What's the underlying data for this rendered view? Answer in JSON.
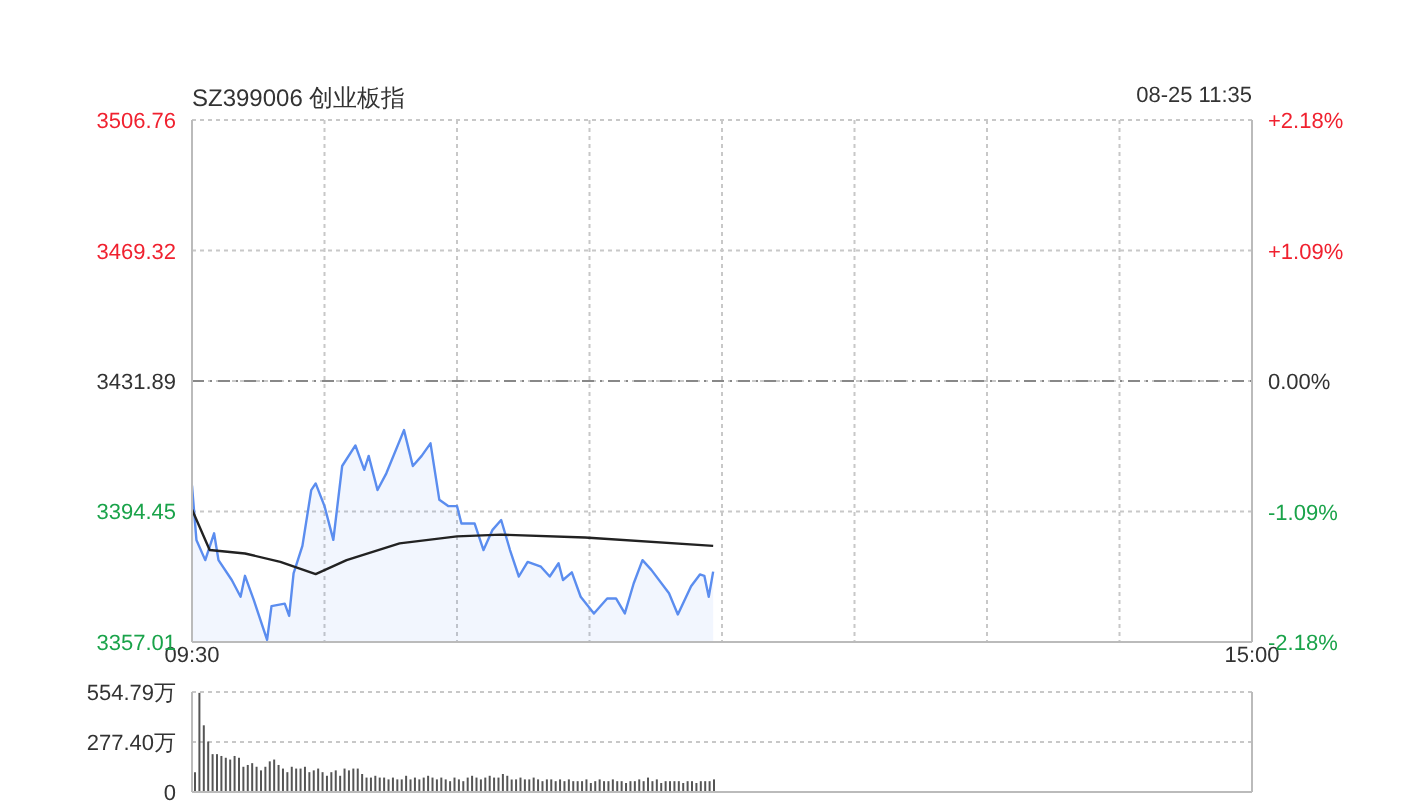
{
  "chart_data": [
    {
      "type": "line",
      "title": "SZ399006 创业板指",
      "annotations": [
        "08-25 11:35"
      ],
      "categories": [
        "09:30",
        null,
        null,
        null,
        null,
        null,
        null,
        null,
        null,
        null,
        null,
        null,
        null,
        null,
        null,
        null,
        null,
        null,
        null,
        null,
        null,
        null,
        null,
        null,
        null,
        null,
        null,
        null,
        null,
        null,
        null,
        null,
        null,
        null,
        null,
        null,
        null,
        null,
        null,
        null,
        null,
        null,
        null,
        null,
        null,
        null,
        null,
        null,
        null,
        null,
        null,
        null,
        null,
        null,
        null,
        null,
        null,
        null,
        null,
        null,
        null,
        null,
        null,
        null,
        null,
        null,
        null,
        null,
        null,
        null,
        null,
        null,
        null,
        null,
        null,
        null,
        null,
        null,
        null,
        null,
        null,
        null,
        null,
        null,
        null,
        null,
        null,
        null,
        null,
        null,
        null,
        null,
        null,
        null,
        null,
        null,
        null,
        null,
        null,
        null,
        null,
        null,
        null,
        null,
        null,
        null,
        null,
        null,
        null,
        null,
        null,
        null,
        null,
        null,
        null,
        null,
        null,
        null,
        null,
        null,
        null,
        null,
        null,
        null,
        null,
        null,
        null,
        null,
        null,
        null,
        null,
        null,
        null,
        null,
        null,
        null,
        null,
        null,
        null,
        null,
        null,
        null,
        null,
        null,
        null,
        null,
        null,
        null,
        null,
        null,
        null,
        null,
        null,
        null,
        null,
        null,
        null,
        null,
        null,
        null,
        null,
        null,
        null,
        null,
        null,
        null,
        null,
        null,
        null,
        null,
        null,
        null,
        null,
        null,
        null,
        null,
        null,
        null,
        null,
        null,
        null,
        null,
        null,
        null,
        null,
        null,
        null,
        null,
        null,
        null,
        null,
        null,
        null,
        null,
        null,
        null,
        null,
        null,
        null,
        null,
        null,
        null,
        null,
        null,
        null,
        null,
        null,
        null,
        null,
        null,
        null,
        null,
        null,
        null,
        null,
        null,
        null,
        null,
        null,
        null,
        null,
        null,
        null,
        null,
        null,
        null,
        null,
        null,
        null,
        null,
        null,
        null,
        null,
        null,
        null,
        null,
        null,
        null,
        null,
        null,
        "15:00"
      ],
      "ylim": [
        3357.01,
        3506.76
      ],
      "yticks": [
        3357.01,
        3394.45,
        3431.89,
        3469.32,
        3506.76
      ],
      "y2lim": [
        -2.18,
        2.18
      ],
      "y2ticks": [
        {
          "value": -2.18,
          "label": "-2.18%"
        },
        {
          "value": -1.09,
          "label": "-1.09%"
        },
        {
          "value": 0,
          "label": "0.00%"
        },
        {
          "value": 1.09,
          "label": "+1.09%"
        },
        {
          "value": 2.18,
          "label": "+2.18%"
        }
      ],
      "grid": true,
      "ref_lines": [
        {
          "axis": "y",
          "value": 3431.89,
          "color": "#888888",
          "line_style": "dashed"
        }
      ],
      "series": [
        {
          "type": "area",
          "color": "#5b8def",
          "values": [
            3401.9,
            3386.3,
            null,
            3380.5,
            null,
            3388.2,
            3380.5,
            null,
            null,
            3374.8,
            null,
            3370,
            3376,
            null,
            3369,
            null,
            null,
            3357.6,
            3367.3,
            null,
            null,
            3368,
            3364.5,
            3376.7,
            null,
            3384.6,
            null,
            3400.6,
            3402.5,
            null,
            3396,
            null,
            3386.3,
            null,
            3407.5,
            null,
            null,
            3413.4,
            null,
            3406.4,
            3410.4,
            null,
            3400.6,
            null,
            3405.4,
            null,
            null,
            null,
            3417.8,
            null,
            3407.5,
            null,
            3410.4,
            null,
            3414,
            null,
            3397.8,
            null,
            3396,
            null,
            3396,
            3391,
            null,
            null,
            3391,
            null,
            3383.4,
            null,
            3389.1,
            null,
            3392,
            null,
            3383.4,
            null,
            3375.8,
            null,
            3380,
            null,
            null,
            3378.6,
            null,
            3375.8,
            null,
            3379.6,
            3374.8,
            null,
            3377,
            null,
            3370,
            null,
            null,
            3365.2,
            null,
            null,
            3369.5,
            null,
            3369.5,
            null,
            3365.2,
            null,
            3373.8,
            null,
            3380.5,
            null,
            3377.7,
            null,
            null,
            null,
            3371,
            null,
            3364.9,
            null,
            null,
            3373,
            null,
            3376.4,
            3376,
            3370,
            3377.2,
            null,
            null,
            null,
            null,
            null,
            null,
            null,
            null,
            null,
            null,
            null,
            null,
            null,
            null,
            null,
            null,
            null,
            null,
            null,
            null,
            null,
            null,
            null,
            null,
            null,
            null,
            null,
            null,
            null,
            null,
            null,
            null,
            null,
            null,
            null,
            null,
            null,
            null,
            null,
            null,
            null,
            null,
            null,
            null,
            null,
            null,
            null,
            null,
            null,
            null,
            null,
            null,
            null,
            null,
            null,
            null,
            null,
            null,
            null,
            null,
            null,
            null,
            null,
            null,
            null,
            null,
            null,
            null,
            null,
            null,
            null,
            null,
            null,
            null,
            null,
            null,
            null,
            null,
            null,
            null,
            null,
            null,
            null,
            null,
            null,
            null,
            null,
            null,
            null,
            null,
            null,
            null,
            null,
            null,
            null,
            null,
            null,
            null,
            null,
            null,
            null,
            null,
            null,
            null,
            null,
            null,
            null,
            null,
            null,
            null,
            null,
            null,
            null,
            null,
            null,
            null,
            null,
            null,
            null,
            null,
            null,
            null
          ]
        },
        {
          "color": "#222222",
          "values": [
            3395,
            null,
            null,
            null,
            3383.4,
            null,
            null,
            null,
            null,
            null,
            null,
            null,
            3382.4,
            null,
            null,
            null,
            null,
            null,
            null,
            null,
            3380,
            null,
            null,
            null,
            null,
            null,
            null,
            null,
            3376.5,
            null,
            null,
            null,
            null,
            null,
            null,
            3380.5,
            null,
            null,
            null,
            null,
            null,
            null,
            null,
            null,
            null,
            null,
            null,
            3385.3,
            null,
            null,
            null,
            null,
            null,
            null,
            null,
            null,
            null,
            null,
            null,
            null,
            3387.3,
            null,
            null,
            null,
            null,
            null,
            null,
            null,
            null,
            null,
            3387.8,
            null,
            null,
            null,
            null,
            null,
            null,
            null,
            null,
            null,
            null,
            null,
            null,
            null,
            null,
            null,
            null,
            null,
            null,
            3387,
            null,
            null,
            null,
            null,
            null,
            null,
            null,
            null,
            null,
            null,
            null,
            null,
            null,
            null,
            null,
            null,
            null,
            null,
            null,
            null,
            null,
            null,
            null,
            null,
            null,
            null,
            null,
            null,
            3384.6,
            null,
            null,
            null,
            null,
            null,
            null,
            null,
            null,
            null,
            null,
            null,
            null,
            null,
            null,
            null,
            null,
            null,
            null,
            null,
            null,
            null,
            null,
            null,
            null,
            null,
            null,
            null,
            null,
            null,
            null,
            null,
            null,
            null,
            null,
            null,
            null,
            null,
            null,
            null,
            null,
            null,
            null,
            null,
            null,
            null,
            null,
            null,
            null,
            null,
            null,
            null,
            null,
            null,
            null,
            null,
            null,
            null,
            null,
            null,
            null,
            null,
            null,
            null,
            null,
            null,
            null,
            null,
            null,
            null,
            null,
            null,
            null,
            null,
            null,
            null,
            null,
            null,
            null,
            null,
            null,
            null,
            null,
            null,
            null,
            null,
            null,
            null,
            null,
            null,
            null,
            null,
            null,
            null,
            null,
            null,
            null,
            null,
            null,
            null,
            null,
            null,
            null,
            null,
            null,
            null,
            null,
            null,
            null,
            null,
            null,
            null,
            null,
            null,
            null,
            null,
            null,
            null,
            null,
            null,
            null,
            null,
            null
          ]
        }
      ]
    },
    {
      "type": "bar",
      "tick_labels": "y",
      "categories": [
        null,
        null,
        null,
        null,
        null,
        null,
        null,
        null,
        null,
        null,
        null,
        null,
        null,
        null,
        null,
        null,
        null,
        null,
        null,
        null,
        null,
        null,
        null,
        null,
        null,
        null,
        null,
        null,
        null,
        null,
        null,
        null,
        null,
        null,
        null,
        null,
        null,
        null,
        null,
        null,
        null,
        null,
        null,
        null,
        null,
        null,
        null,
        null,
        null,
        null,
        null,
        null,
        null,
        null,
        null,
        null,
        null,
        null,
        null,
        null,
        null,
        null,
        null,
        null,
        null,
        null,
        null,
        null,
        null,
        null,
        null,
        null,
        null,
        null,
        null,
        null,
        null,
        null,
        null,
        null,
        null,
        null,
        null,
        null,
        null,
        null,
        null,
        null,
        null,
        null,
        null,
        null,
        null,
        null,
        null,
        null,
        null,
        null,
        null,
        null,
        null,
        null,
        null,
        null,
        null,
        null,
        null,
        null,
        null,
        null,
        null,
        null,
        null,
        null,
        null,
        null,
        null,
        null,
        null,
        null,
        null,
        null,
        null,
        null,
        null,
        null,
        null,
        null,
        null,
        null,
        null,
        null,
        null,
        null,
        null,
        null,
        null,
        null,
        null,
        null,
        null,
        null,
        null,
        null,
        null,
        null,
        null,
        null,
        null,
        null,
        null,
        null,
        null,
        null,
        null,
        null,
        null,
        null,
        null,
        null,
        null,
        null,
        null,
        null,
        null,
        null,
        null,
        null,
        null,
        null,
        null,
        null,
        null,
        null,
        null,
        null,
        null,
        null,
        null,
        null,
        null,
        null,
        null,
        null,
        null,
        null,
        null,
        null,
        null,
        null,
        null,
        null,
        null,
        null,
        null,
        null,
        null,
        null,
        null,
        null,
        null,
        null,
        null,
        null,
        null,
        null,
        null,
        null,
        null,
        null,
        null,
        null,
        null,
        null,
        null,
        null,
        null,
        null,
        null,
        null,
        null,
        null,
        null,
        null,
        null,
        null,
        null,
        null,
        null,
        null,
        null,
        null,
        null,
        null,
        null,
        null,
        null,
        null,
        null,
        null,
        null
      ],
      "ylim": [
        0,
        554.79
      ],
      "yticks": [
        0,
        {
          "value": 277.4,
          "label": "277.40万"
        },
        {
          "value": 554.79,
          "label": "554.79万"
        }
      ],
      "grid": "y",
      "series": [
        {
          "color": "#555555",
          "values": [
            110,
            550,
            370,
            280,
            210,
            210,
            200,
            190,
            180,
            200,
            190,
            140,
            150,
            160,
            140,
            120,
            140,
            170,
            180,
            150,
            130,
            110,
            140,
            130,
            130,
            140,
            110,
            120,
            130,
            110,
            90,
            110,
            120,
            90,
            130,
            120,
            130,
            130,
            100,
            80,
            80,
            90,
            80,
            80,
            70,
            80,
            70,
            70,
            90,
            70,
            80,
            70,
            80,
            90,
            80,
            70,
            80,
            70,
            60,
            80,
            70,
            60,
            80,
            90,
            80,
            70,
            80,
            90,
            80,
            80,
            100,
            90,
            70,
            70,
            80,
            70,
            70,
            80,
            70,
            60,
            70,
            70,
            60,
            70,
            60,
            70,
            60,
            60,
            60,
            70,
            50,
            60,
            70,
            60,
            60,
            70,
            60,
            60,
            50,
            60,
            60,
            70,
            60,
            80,
            60,
            70,
            50,
            60,
            60,
            60,
            60,
            50,
            60,
            60,
            50,
            60,
            60,
            60,
            70,
            null,
            null,
            null,
            null,
            null,
            null,
            null,
            null,
            null,
            null,
            null,
            null,
            null,
            null,
            null,
            null,
            null,
            null,
            null,
            null,
            null,
            null,
            null,
            null,
            null,
            null,
            null,
            null,
            null,
            null,
            null,
            null,
            null,
            null,
            null,
            null,
            null,
            null,
            null,
            null,
            null,
            null,
            null,
            null,
            null,
            null,
            null,
            null,
            null,
            null,
            null,
            null,
            null,
            null,
            null,
            null,
            null,
            null,
            null,
            null,
            null,
            null,
            null,
            null,
            null,
            null,
            null,
            null,
            null,
            null,
            null,
            null,
            null,
            null,
            null,
            null,
            null,
            null,
            null,
            null,
            null,
            null,
            null,
            null,
            null,
            null,
            null,
            null,
            null,
            null,
            null,
            null,
            null,
            null,
            null,
            null,
            null,
            null,
            null,
            null,
            null,
            null,
            null,
            null,
            null,
            null,
            null,
            null,
            null,
            null,
            null,
            null,
            null,
            null,
            null,
            null,
            null,
            null,
            null,
            null,
            null,
            null
          ]
        }
      ]
    }
  ]
}
